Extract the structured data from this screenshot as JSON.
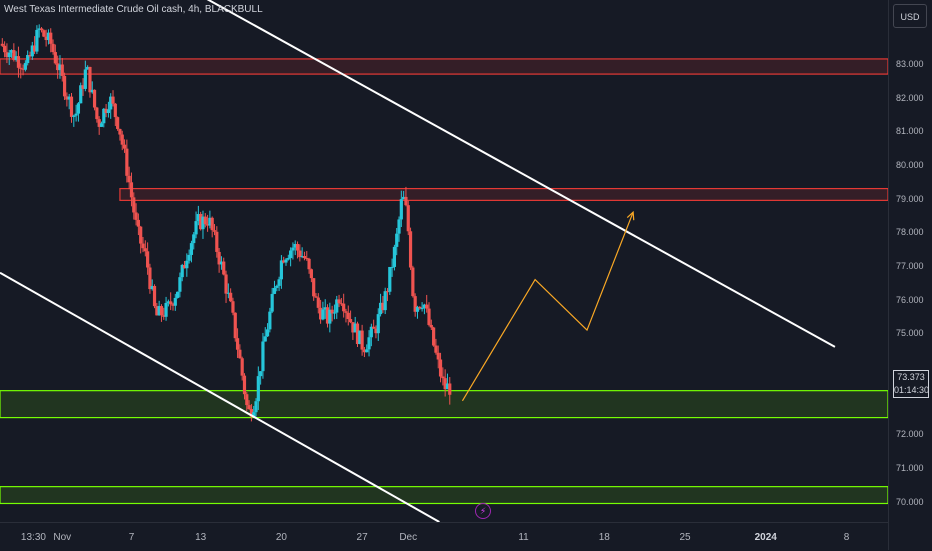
{
  "header": {
    "title": "West Texas Intermediate Crude Oil cash, 4h, BLACKBULL"
  },
  "toolbar": {
    "currency_label": "USD"
  },
  "last_price": {
    "value": "73.373",
    "countdown": "01:14:30"
  },
  "event_badge": {
    "icon": "lightning-icon"
  },
  "colors": {
    "background": "#161a25",
    "up_candle": "#26c6da",
    "down_candle": "#ef5350",
    "resistance_zone": "#e53935",
    "support_zone": "#76ff03",
    "trendline": "#ffffff",
    "projection": "#f9a825"
  },
  "chart_data": {
    "type": "candlestick",
    "symbol": "West Texas Intermediate Crude Oil cash",
    "timeframe": "4h",
    "broker": "BLACKBULL",
    "currency": "USD",
    "y_ticks": [
      "70.000",
      "71.000",
      "72.000",
      "73.000",
      "74.000",
      "75.000",
      "76.000",
      "77.000",
      "78.000",
      "79.000",
      "80.000",
      "81.000",
      "82.000",
      "83.000"
    ],
    "x_ticks": [
      {
        "label": "13:30",
        "day": 0
      },
      {
        "label": "Nov",
        "day": 2.5
      },
      {
        "label": "7",
        "day": 8.5
      },
      {
        "label": "13",
        "day": 14.5
      },
      {
        "label": "20",
        "day": 21.5
      },
      {
        "label": "27",
        "day": 28.5
      },
      {
        "label": "Dec",
        "day": 32.5
      },
      {
        "label": "11",
        "day": 42.5
      },
      {
        "label": "18",
        "day": 49.5
      },
      {
        "label": "25",
        "day": 56.5
      },
      {
        "label": "2024",
        "day": 63.5,
        "bold": true
      },
      {
        "label": "8",
        "day": 70.5
      }
    ],
    "ylim": [
      69.4,
      84.9
    ],
    "xlim": [
      -2.9,
      74.1
    ],
    "price_path": [
      [
        -2.9,
        83.6
      ],
      [
        -1.8,
        83.3
      ],
      [
        -0.6,
        82.9
      ],
      [
        0.5,
        84.0
      ],
      [
        1.5,
        83.6
      ],
      [
        2.6,
        82.4
      ],
      [
        3.6,
        81.4
      ],
      [
        4.6,
        82.9
      ],
      [
        5.6,
        81.2
      ],
      [
        6.6,
        82.0
      ],
      [
        7.4,
        81.2
      ],
      [
        8.2,
        79.7
      ],
      [
        9.0,
        78.0
      ],
      [
        9.8,
        77.2
      ],
      [
        10.6,
        75.5
      ],
      [
        11.6,
        75.7
      ],
      [
        12.6,
        76.4
      ],
      [
        13.4,
        77.5
      ],
      [
        14.3,
        78.3
      ],
      [
        15.2,
        78.4
      ],
      [
        16.3,
        77.0
      ],
      [
        17.2,
        75.6
      ],
      [
        18.0,
        74.0
      ],
      [
        18.6,
        72.6
      ],
      [
        19.2,
        73.0
      ],
      [
        20.0,
        74.7
      ],
      [
        20.8,
        76.1
      ],
      [
        21.6,
        77.3
      ],
      [
        22.6,
        77.6
      ],
      [
        23.6,
        77.2
      ],
      [
        24.6,
        75.8
      ],
      [
        25.6,
        75.4
      ],
      [
        26.6,
        76.2
      ],
      [
        27.6,
        75.3
      ],
      [
        28.6,
        74.6
      ],
      [
        29.6,
        75.1
      ],
      [
        30.6,
        76.2
      ],
      [
        31.4,
        77.6
      ],
      [
        32.0,
        79.1
      ],
      [
        32.4,
        78.5
      ],
      [
        33.0,
        75.8
      ],
      [
        33.8,
        76.0
      ],
      [
        34.4,
        75.1
      ],
      [
        35.0,
        74.2
      ],
      [
        35.6,
        73.4
      ],
      [
        36.2,
        73.4
      ]
    ],
    "last_price": 73.373,
    "zones": [
      {
        "kind": "resistance",
        "from": 82.7,
        "to": 83.15
      },
      {
        "kind": "resistance",
        "from": 78.95,
        "to": 79.3,
        "day_start": 7.5
      },
      {
        "kind": "support",
        "from": 72.5,
        "to": 73.3
      },
      {
        "kind": "support",
        "from": 69.95,
        "to": 70.45
      }
    ],
    "trendlines": [
      {
        "kind": "channel-top",
        "points": [
          [
            9.4,
            86.0
          ],
          [
            69.5,
            74.6
          ]
        ]
      },
      {
        "kind": "channel-bottom",
        "points": [
          [
            -2.9,
            76.8
          ],
          [
            35.2,
            69.4
          ]
        ]
      }
    ],
    "projection": [
      [
        37.2,
        73.0
      ],
      [
        43.5,
        76.6
      ],
      [
        48.0,
        75.1
      ],
      [
        52.0,
        78.6
      ]
    ],
    "grid": false
  }
}
